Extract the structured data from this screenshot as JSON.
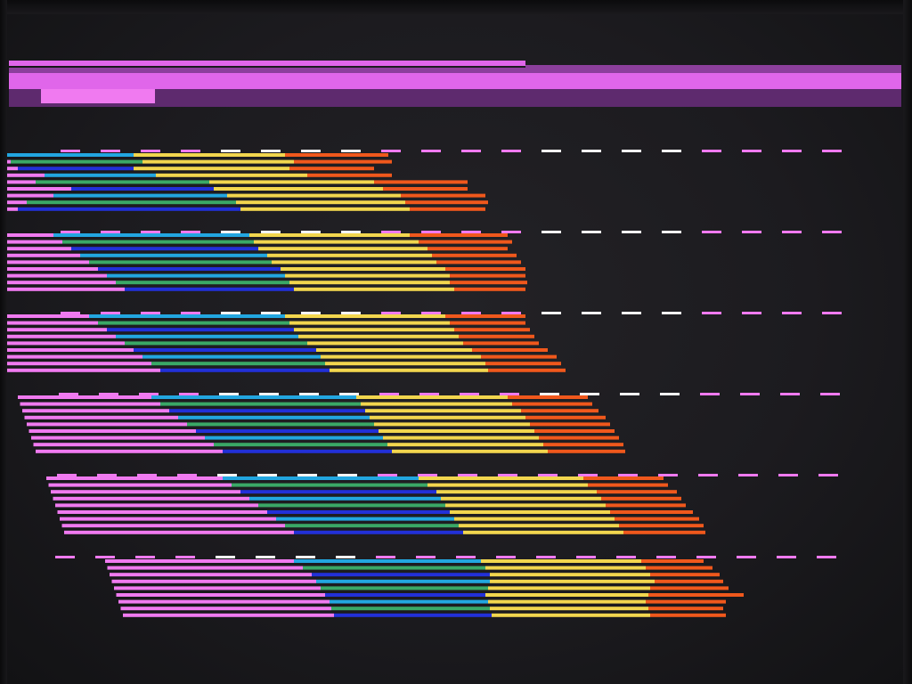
{
  "palette": {
    "pink": "#f07af0",
    "magenta_bar": "#e066ea",
    "purple_bar": "#8c3f9c",
    "dark_purple_bar": "#5e2a6e",
    "cyan": "#22a6e0",
    "blue": "#2230d8",
    "green": "#3aa866",
    "yellow": "#f2d64e",
    "orange": "#f0581c",
    "dash_pink": "#f07af0",
    "dash_white": "#f4f4f4",
    "screen": "#1c1b1f"
  },
  "bar_groups_count": 6,
  "colors_per_line": [
    "pink",
    "cyan/blue/green",
    "yellow",
    "orange"
  ]
}
